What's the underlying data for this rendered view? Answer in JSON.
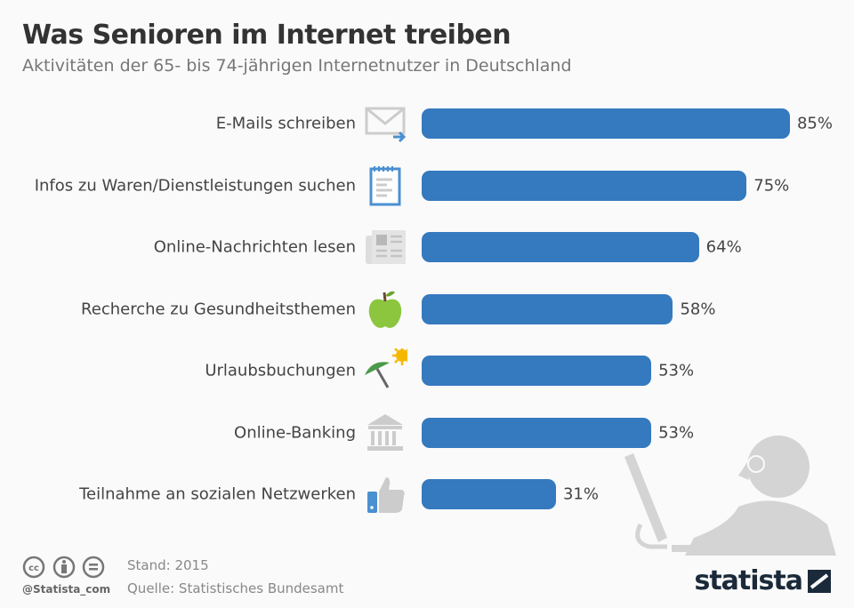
{
  "title": "Was Senioren im Internet treiben",
  "subtitle": "Aktivitäten der 65- bis 74-jährigen Internetnutzer in Deutschland",
  "chart_data": {
    "type": "bar",
    "orientation": "horizontal",
    "categories": [
      "E-Mails schreiben",
      "Infos zu Waren/Dienstleistungen suchen",
      "Online-Nachrichten lesen",
      "Recherche zu Gesundheitsthemen",
      "Urlaubsbuchungen",
      "Online-Banking",
      "Teilnahme an sozialen Netzwerken"
    ],
    "values": [
      85,
      75,
      64,
      58,
      53,
      53,
      31
    ],
    "value_labels": [
      "85%",
      "75%",
      "64%",
      "58%",
      "53%",
      "53%",
      "31%"
    ],
    "icons": [
      "envelope-icon",
      "notepad-icon",
      "newspaper-icon",
      "apple-icon",
      "umbrella-sun-icon",
      "bank-icon",
      "thumbs-up-icon"
    ],
    "unit": "%",
    "grid": false,
    "bar_color": "#3579bf"
  },
  "footer": {
    "handle": "@Statista_com",
    "stand": "Stand: 2015",
    "source": "Quelle: Statistisches Bundesamt",
    "logo": "statista"
  }
}
